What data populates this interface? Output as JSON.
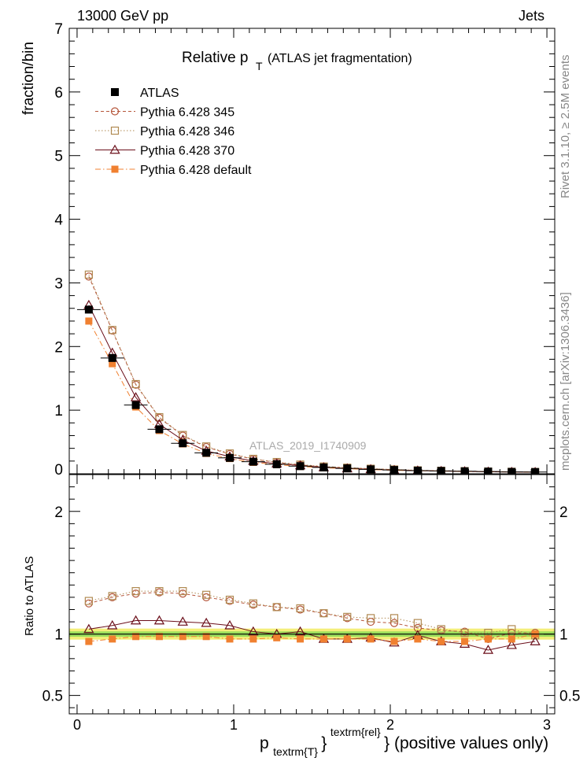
{
  "header": {
    "left": "13000 GeV pp",
    "right": "Jets"
  },
  "side_text": {
    "rivet": "Rivet 3.1.10, ≥ 2.5M events",
    "mcplots": "mcplots.cern.ch [arXiv:1306.3436]"
  },
  "chart_data": {
    "type": "line",
    "title_main": "Relative p",
    "title_sub": "T",
    "title_rest": " (ATLAS jet fragmentation)",
    "watermark": "ATLAS_2019_I1740909",
    "ylabel_top": "fraction/bin",
    "ylabel_bottom": "Ratio to ATLAS",
    "xlabel": {
      "p": "p",
      "sub": "textrm{T}",
      "brace": "}",
      "sup": "textrm{rel}",
      "rest": "} (positive values only)"
    },
    "xlim": [
      -0.05,
      3.05
    ],
    "ylim_top": [
      0,
      7
    ],
    "ylim_bottom": [
      0.35,
      2.3
    ],
    "x_ticks": [
      "0",
      "1",
      "2",
      "3"
    ],
    "y_ticks_top": [
      "0",
      "1",
      "2",
      "3",
      "4",
      "5",
      "6",
      "7"
    ],
    "y_ticks_bottom": [
      "0.5",
      "1",
      "2"
    ],
    "x": [
      0.075,
      0.225,
      0.375,
      0.525,
      0.675,
      0.825,
      0.975,
      1.125,
      1.275,
      1.425,
      1.575,
      1.725,
      1.875,
      2.025,
      2.175,
      2.325,
      2.475,
      2.625,
      2.775,
      2.925
    ],
    "series": [
      {
        "name": "ATLAS",
        "color": "#000000",
        "values": [
          2.58,
          1.82,
          1.08,
          0.7,
          0.48,
          0.33,
          0.25,
          0.19,
          0.15,
          0.12,
          0.1,
          0.085,
          0.07,
          0.06,
          0.05,
          0.045,
          0.04,
          0.035,
          0.03,
          0.028
        ],
        "ratio": [
          1,
          1,
          1,
          1,
          1,
          1,
          1,
          1,
          1,
          1,
          1,
          1,
          1,
          1,
          1,
          1,
          1,
          1,
          1,
          1
        ]
      },
      {
        "name": "Pythia 6.428 345",
        "color": "#b5553a",
        "values": [
          3.1,
          2.25,
          1.4,
          0.88,
          0.6,
          0.42,
          0.31,
          0.23,
          0.18,
          0.14,
          0.11,
          0.095,
          0.078,
          0.066,
          0.053,
          0.047,
          0.041,
          0.034,
          0.031,
          0.028
        ],
        "ratio": [
          1.25,
          1.3,
          1.33,
          1.34,
          1.33,
          1.3,
          1.27,
          1.24,
          1.22,
          1.2,
          1.17,
          1.13,
          1.1,
          1.09,
          1.05,
          1.03,
          1.02,
          0.96,
          1.01,
          1.01
        ]
      },
      {
        "name": "Pythia 6.428 346",
        "color": "#b08a52",
        "values": [
          3.13,
          2.26,
          1.41,
          0.89,
          0.61,
          0.43,
          0.32,
          0.235,
          0.185,
          0.145,
          0.115,
          0.097,
          0.08,
          0.068,
          0.055,
          0.048,
          0.042,
          0.036,
          0.032,
          0.029
        ],
        "ratio": [
          1.27,
          1.31,
          1.35,
          1.35,
          1.35,
          1.32,
          1.28,
          1.25,
          1.22,
          1.21,
          1.17,
          1.14,
          1.13,
          1.13,
          1.09,
          1.04,
          1.01,
          1.01,
          1.04,
          0.99
        ]
      },
      {
        "name": "Pythia 6.428 370",
        "color": "#6b0f1a",
        "values": [
          2.65,
          1.9,
          1.2,
          0.78,
          0.53,
          0.36,
          0.27,
          0.2,
          0.16,
          0.13,
          0.1,
          0.083,
          0.07,
          0.057,
          0.049,
          0.043,
          0.037,
          0.032,
          0.028,
          0.026
        ],
        "ratio": [
          1.04,
          1.07,
          1.11,
          1.11,
          1.1,
          1.09,
          1.07,
          1.02,
          1.0,
          1.02,
          0.96,
          0.96,
          0.97,
          0.93,
          0.99,
          0.94,
          0.92,
          0.87,
          0.91,
          0.94
        ]
      },
      {
        "name": "Pythia 6.428 default",
        "color": "#f08030",
        "values": [
          2.4,
          1.73,
          1.05,
          0.68,
          0.47,
          0.32,
          0.24,
          0.18,
          0.145,
          0.115,
          0.095,
          0.08,
          0.066,
          0.056,
          0.048,
          0.043,
          0.038,
          0.034,
          0.029,
          0.027
        ],
        "ratio": [
          0.94,
          0.96,
          0.98,
          0.98,
          0.98,
          0.98,
          0.96,
          0.96,
          0.97,
          0.96,
          0.96,
          0.96,
          0.96,
          0.94,
          0.96,
          0.94,
          0.94,
          0.96,
          0.96,
          1.0
        ]
      }
    ]
  }
}
